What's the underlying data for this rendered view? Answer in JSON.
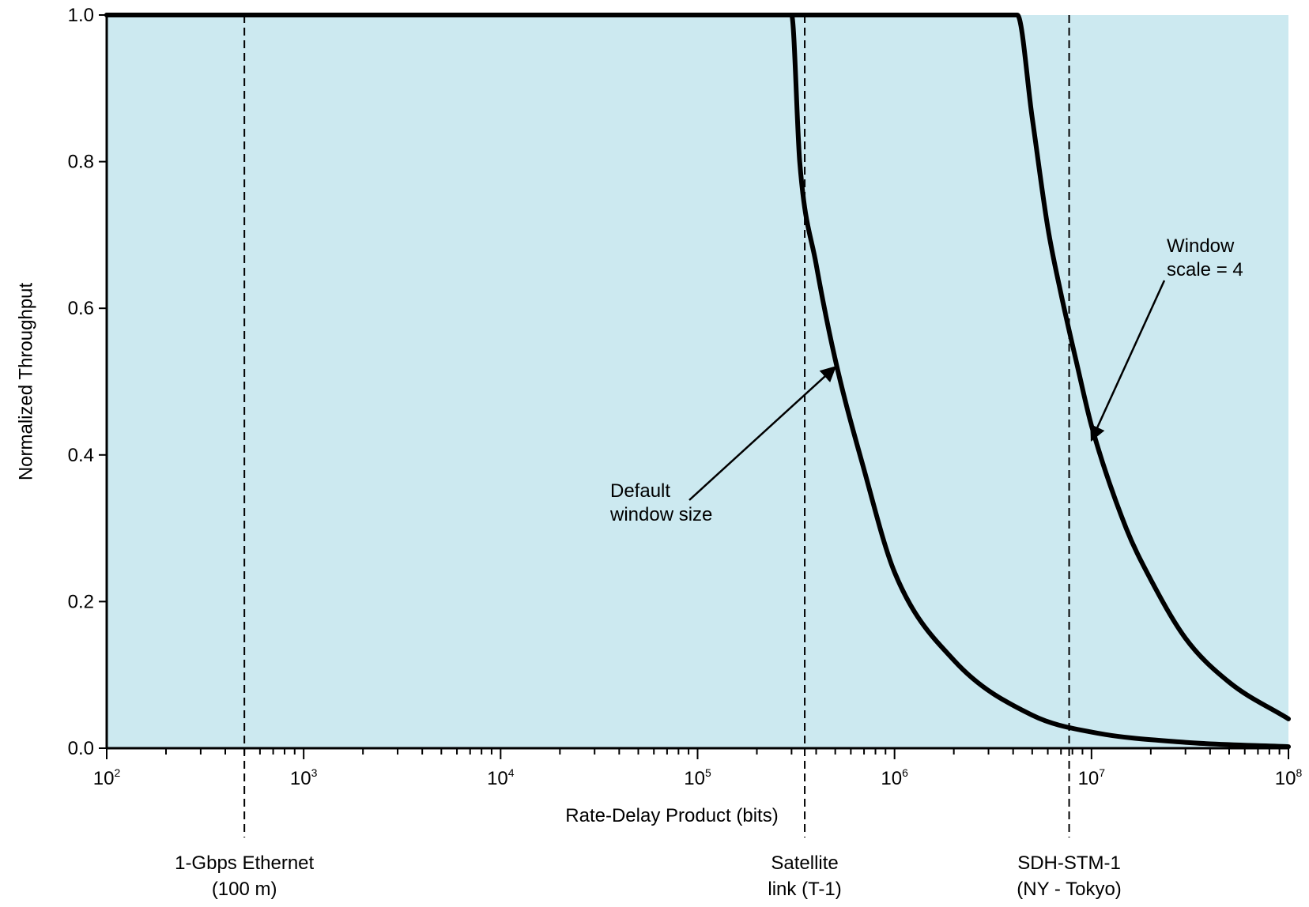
{
  "chart_data": {
    "type": "line",
    "x_scale": "log",
    "xlabel": "Rate-Delay Product (bits)",
    "ylabel": "Normalized Throughput",
    "xlim": [
      100,
      100000000
    ],
    "ylim": [
      0.0,
      1.0
    ],
    "x_ticks": [
      {
        "base": "10",
        "exp": "2",
        "value": 100
      },
      {
        "base": "10",
        "exp": "3",
        "value": 1000
      },
      {
        "base": "10",
        "exp": "4",
        "value": 10000
      },
      {
        "base": "10",
        "exp": "5",
        "value": 100000
      },
      {
        "base": "10",
        "exp": "6",
        "value": 1000000
      },
      {
        "base": "10",
        "exp": "7",
        "value": 10000000
      },
      {
        "base": "10",
        "exp": "8",
        "value": 100000000
      }
    ],
    "y_ticks": [
      {
        "label": "0.0",
        "value": 0.0
      },
      {
        "label": "0.2",
        "value": 0.2
      },
      {
        "label": "0.4",
        "value": 0.4
      },
      {
        "label": "0.6",
        "value": 0.6
      },
      {
        "label": "0.8",
        "value": 0.8
      },
      {
        "label": "1.0",
        "value": 1.0
      }
    ],
    "grid": false,
    "plot_background": "#cce9f0",
    "line_color": "#000000",
    "series": [
      {
        "x": [
          100,
          1000,
          10000,
          100000,
          300000,
          330000,
          400000,
          500000,
          700000,
          1000000,
          2000000,
          5000000,
          10000000,
          30000000,
          100000000
        ],
        "y": [
          1.0,
          1.0,
          1.0,
          1.0,
          1.0,
          0.8,
          0.66,
          0.53,
          0.38,
          0.24,
          0.12,
          0.045,
          0.022,
          0.008,
          0.002
        ]
      },
      {
        "x": [
          100,
          1000,
          10000,
          100000,
          1000000,
          4200000,
          5000000,
          6000000,
          7000000,
          8500000,
          10000000,
          15000000,
          20000000,
          30000000,
          50000000,
          100000000
        ],
        "y": [
          1.0,
          1.0,
          1.0,
          1.0,
          1.0,
          1.0,
          0.86,
          0.71,
          0.62,
          0.52,
          0.44,
          0.3,
          0.23,
          0.15,
          0.09,
          0.04
        ]
      }
    ],
    "reference_lines": [
      {
        "x": 500,
        "label_lines": [
          "1-Gbps Ethernet",
          "(100 m)"
        ]
      },
      {
        "x": 350000,
        "label_lines": [
          "Satellite",
          "link (T-1)"
        ]
      },
      {
        "x": 7700000,
        "label_lines": [
          "SDH-STM-1",
          "(NY - Tokyo)"
        ]
      }
    ],
    "annotations": [
      {
        "text_lines": [
          "Default",
          "window size"
        ],
        "target_x": 500000,
        "target_y": 0.52
      },
      {
        "text_lines": [
          "Window",
          "scale = 4"
        ],
        "target_x": 10000000,
        "target_y": 0.42
      }
    ]
  }
}
